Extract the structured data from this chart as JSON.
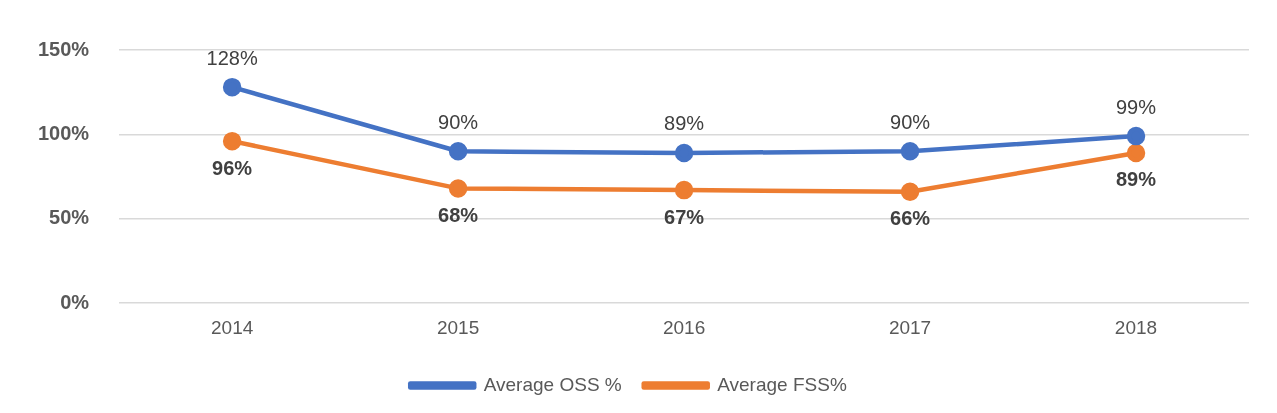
{
  "chart_data": {
    "type": "line",
    "categories": [
      "2014",
      "2015",
      "2016",
      "2017",
      "2018"
    ],
    "series": [
      {
        "name": "Average OSS %",
        "color": "#4472c4",
        "values": [
          128,
          90,
          89,
          90,
          99
        ],
        "value_labels": [
          "128%",
          "90%",
          "89%",
          "90%",
          "99%"
        ]
      },
      {
        "name": "Average FSS%",
        "color": "#ed7d31",
        "values": [
          96,
          68,
          67,
          66,
          89
        ],
        "value_labels": [
          "96%",
          "68%",
          "67%",
          "66%",
          "89%"
        ]
      }
    ],
    "ylim": [
      0,
      150
    ],
    "yticks": [
      {
        "value": 0,
        "label": "0%"
      },
      {
        "value": 50,
        "label": "50%"
      },
      {
        "value": 100,
        "label": "100%"
      },
      {
        "value": 150,
        "label": "150%"
      }
    ],
    "grid": "y",
    "legend": "bottom",
    "marker": "circle",
    "line_style": "solid"
  }
}
